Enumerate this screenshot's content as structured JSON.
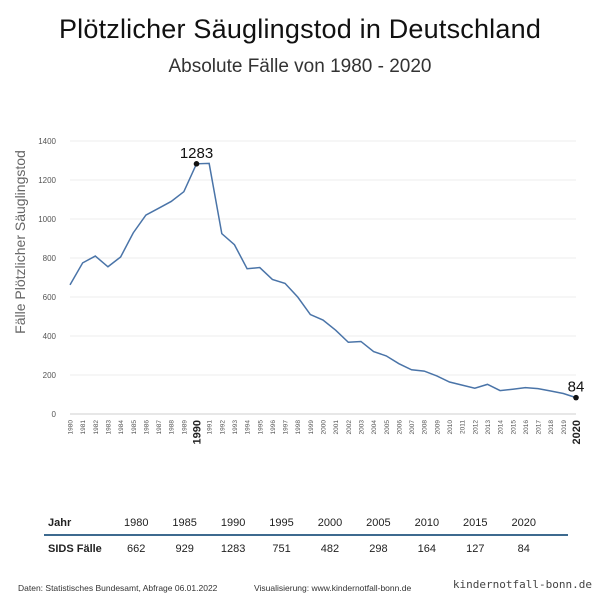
{
  "title": "Plötzlicher Säuglingstod in Deutschland",
  "subtitle": "Absolute Fälle von 1980 - 2020",
  "chart_data": {
    "type": "line",
    "ylabel": "Fälle Plötzlicher Säuglingstod",
    "xlabel": "",
    "ylim": [
      0,
      1400
    ],
    "yticks": [
      0,
      200,
      400,
      600,
      800,
      1000,
      1200,
      1400
    ],
    "grid": true,
    "line_color": "#4a74a8",
    "x": [
      1980,
      1981,
      1982,
      1983,
      1984,
      1985,
      1986,
      1987,
      1988,
      1989,
      1990,
      1991,
      1992,
      1993,
      1994,
      1995,
      1996,
      1997,
      1998,
      1999,
      2000,
      2001,
      2002,
      2003,
      2004,
      2005,
      2006,
      2007,
      2008,
      2009,
      2010,
      2011,
      2012,
      2013,
      2014,
      2015,
      2016,
      2017,
      2018,
      2019,
      2020
    ],
    "xtick_labels": [
      "1980",
      "1981",
      "1982",
      "1983",
      "1984",
      "1985",
      "1986",
      "1987",
      "1988",
      "1989",
      "1990",
      "1991",
      "1992",
      "1993",
      "1994",
      "1995",
      "1996",
      "1997",
      "1998",
      "1999",
      "2000",
      "2001",
      "2002",
      "2003",
      "2004",
      "2005",
      "2006",
      "2007",
      "2008",
      "2009",
      "2010",
      "2011",
      "2012",
      "2013",
      "2014",
      "2015",
      "2016",
      "2017",
      "2018",
      "2019",
      "2020"
    ],
    "highlighted_ticks": [
      "1990",
      "2020"
    ],
    "values": [
      662,
      775,
      810,
      755,
      805,
      929,
      1020,
      1055,
      1090,
      1140,
      1283,
      1285,
      925,
      868,
      745,
      751,
      690,
      670,
      600,
      510,
      482,
      430,
      368,
      372,
      320,
      298,
      258,
      227,
      220,
      195,
      164,
      148,
      132,
      152,
      120,
      127,
      135,
      130,
      118,
      105,
      84
    ],
    "annotations": [
      {
        "year": 1990,
        "label": "1283"
      },
      {
        "year": 2020,
        "label": "84"
      }
    ]
  },
  "table": {
    "header_label": "Jahr",
    "row_label": "SIDS Fälle",
    "years": [
      "1980",
      "1985",
      "1990",
      "1995",
      "2000",
      "2005",
      "2010",
      "2015",
      "2020"
    ],
    "cases": [
      "662",
      "929",
      "1283",
      "751",
      "482",
      "298",
      "164",
      "127",
      "84"
    ]
  },
  "footer": {
    "source": "Daten: Statistisches Bundesamt, Abfrage 06.01.2022",
    "visualization": "Visualisierung: www.kindernotfall-bonn.de",
    "watermark": "kindernotfall-bonn.de"
  }
}
